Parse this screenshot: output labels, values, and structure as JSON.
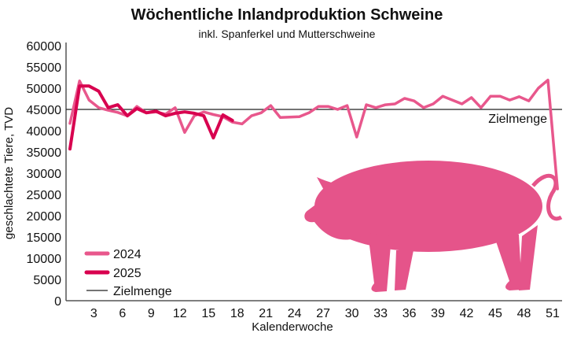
{
  "chart_data": {
    "type": "line",
    "title": "Wöchentliche Inlandproduktion Schweine",
    "subtitle": "inkl. Spanferkel und Mutterschweine",
    "xlabel": "Kalenderwoche",
    "ylabel": "geschlachtete Tiere, TVD",
    "ylim": [
      0,
      60000
    ],
    "yticks": [
      0,
      5000,
      10000,
      15000,
      20000,
      25000,
      30000,
      35000,
      40000,
      45000,
      50000,
      55000,
      60000
    ],
    "ytick_labels": [
      "0",
      "5000",
      "10000",
      "15000",
      "20000",
      "25000",
      "30000",
      "35000",
      "40000",
      "45000",
      "50000",
      "55000",
      "60000"
    ],
    "xlim": [
      1,
      52
    ],
    "xticks": [
      3,
      6,
      9,
      12,
      15,
      18,
      21,
      24,
      27,
      30,
      33,
      36,
      39,
      42,
      45,
      48,
      51
    ],
    "xtick_labels": [
      "3",
      "6",
      "9",
      "12",
      "15",
      "18",
      "21",
      "24",
      "27",
      "30",
      "33",
      "36",
      "39",
      "42",
      "45",
      "48",
      "51"
    ],
    "grid": false,
    "legend_position": "bottom-left",
    "reference_line": {
      "name": "Zielmenge",
      "value": 45000,
      "label": "Zielmenge",
      "color": "#222222"
    },
    "series": [
      {
        "name": "2024",
        "color": "#e8578c",
        "x": [
          1,
          2,
          3,
          4,
          5,
          6,
          7,
          8,
          9,
          10,
          11,
          12,
          13,
          14,
          15,
          16,
          17,
          18,
          19,
          20,
          21,
          22,
          23,
          24,
          25,
          26,
          27,
          28,
          29,
          30,
          31,
          32,
          33,
          34,
          35,
          36,
          37,
          38,
          39,
          40,
          41,
          42,
          43,
          44,
          45,
          46,
          47,
          48,
          49,
          50,
          51,
          52
        ],
        "values": [
          41700,
          51700,
          47200,
          45400,
          44800,
          44300,
          43500,
          45700,
          44200,
          44400,
          43900,
          45400,
          39600,
          43500,
          44400,
          43800,
          43300,
          42000,
          41600,
          43500,
          44200,
          45900,
          43100,
          43200,
          43300,
          44200,
          45700,
          45700,
          45000,
          45900,
          38500,
          46100,
          45400,
          46100,
          46300,
          47600,
          47000,
          45400,
          46300,
          48100,
          47200,
          46300,
          47800,
          45400,
          48100,
          48100,
          47200,
          48000,
          47000,
          50000,
          51900,
          26300
        ]
      },
      {
        "name": "2025",
        "color": "#d8004f",
        "x": [
          1,
          2,
          3,
          4,
          5,
          6,
          7,
          8,
          9,
          10,
          11,
          12,
          13,
          14,
          15,
          16,
          17,
          18
        ],
        "values": [
          35700,
          50500,
          50500,
          49300,
          45400,
          46100,
          43500,
          45200,
          44200,
          44600,
          43500,
          44100,
          44400,
          44100,
          43500,
          38300,
          43700,
          42400
        ]
      }
    ],
    "legend": [
      "2024",
      "2025",
      "Zielmenge"
    ],
    "illustration": {
      "name": "pig-silhouette",
      "color": "#e5548a"
    }
  }
}
